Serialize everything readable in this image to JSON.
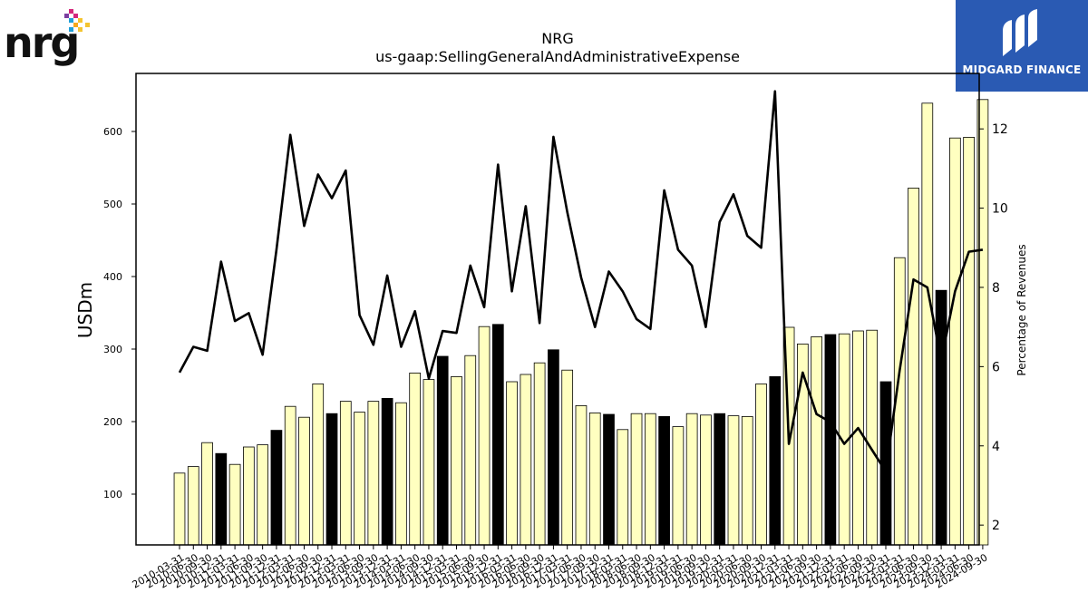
{
  "logos": {
    "left_text": "nrg",
    "right_text": "MIDGARD FINANCE",
    "right_bg": "#2a5ab3"
  },
  "chart_data": {
    "type": "bar",
    "title": "NRG",
    "subtitle": "us-gaap:SellingGeneralAndAdministrativeExpense",
    "ylabel": "USDm",
    "y2label": "Percentage of Revenues",
    "ylim": [
      30,
      680
    ],
    "y2lim": [
      1.5,
      13.4
    ],
    "yticks": [
      100,
      200,
      300,
      400,
      500,
      600
    ],
    "y2ticks": [
      2,
      4,
      6,
      8,
      10,
      12
    ],
    "grid": false,
    "bar_color": "#ffffc0",
    "q4_bar_color": "#000000",
    "line_color": "#000000",
    "categories": [
      "2010-03-31",
      "2010-06-30",
      "2010-09-30",
      "2010-12-31",
      "2011-03-31",
      "2011-06-30",
      "2011-09-30",
      "2011-12-31",
      "2012-03-31",
      "2012-06-30",
      "2012-09-30",
      "2012-12-31",
      "2013-03-31",
      "2013-06-30",
      "2013-09-30",
      "2013-12-31",
      "2014-03-31",
      "2014-06-30",
      "2014-09-30",
      "2014-12-31",
      "2015-03-31",
      "2015-06-30",
      "2015-09-30",
      "2015-12-31",
      "2016-03-31",
      "2016-06-30",
      "2016-09-30",
      "2016-12-31",
      "2017-03-31",
      "2017-06-30",
      "2017-09-30",
      "2017-12-31",
      "2018-03-31",
      "2018-06-30",
      "2018-09-30",
      "2018-12-31",
      "2019-03-31",
      "2019-06-30",
      "2019-09-30",
      "2019-12-31",
      "2020-03-31",
      "2020-06-30",
      "2020-09-30",
      "2020-12-31",
      "2021-03-31",
      "2021-06-30",
      "2021-09-30",
      "2021-12-31",
      "2022-03-31",
      "2022-06-30",
      "2022-09-30",
      "2022-12-31",
      "2023-03-31",
      "2023-06-30",
      "2023-09-30",
      "2023-12-31",
      "2024-03-31",
      "2024-06-30",
      "2024-09-30"
    ],
    "series": [
      {
        "kind": "bar",
        "values": [
          129,
          138,
          171,
          156,
          141,
          165,
          168,
          188,
          221,
          206,
          252,
          211,
          228,
          213,
          228,
          232,
          226,
          267,
          258,
          290,
          262,
          291,
          331,
          334,
          255,
          265,
          281,
          299,
          271,
          222,
          212,
          210,
          189,
          211,
          211,
          207,
          193,
          211,
          209,
          211,
          208,
          207,
          252,
          262,
          330,
          307,
          317,
          320,
          321,
          325,
          326,
          255,
          426,
          522,
          639,
          381,
          591,
          592,
          644
        ]
      },
      {
        "kind": "line",
        "axis": "right",
        "values": [
          5.85,
          6.5,
          6.4,
          8.65,
          7.15,
          7.35,
          6.3,
          8.95,
          11.85,
          9.55,
          10.85,
          10.25,
          10.95,
          7.3,
          6.55,
          8.3,
          6.5,
          7.4,
          5.7,
          6.9,
          6.85,
          8.55,
          7.5,
          11.1,
          7.9,
          10.05,
          7.1,
          11.8,
          9.9,
          8.25,
          7.0,
          8.4,
          7.9,
          7.2,
          6.95,
          10.45,
          8.95,
          8.55,
          7.0,
          9.65,
          10.35,
          9.3,
          9.0,
          12.95,
          4.05,
          5.85,
          4.8,
          4.6,
          4.05,
          4.45,
          3.9,
          3.35,
          5.9,
          8.2,
          8.0,
          6.15,
          7.9,
          8.9,
          8.95
        ]
      }
    ]
  }
}
